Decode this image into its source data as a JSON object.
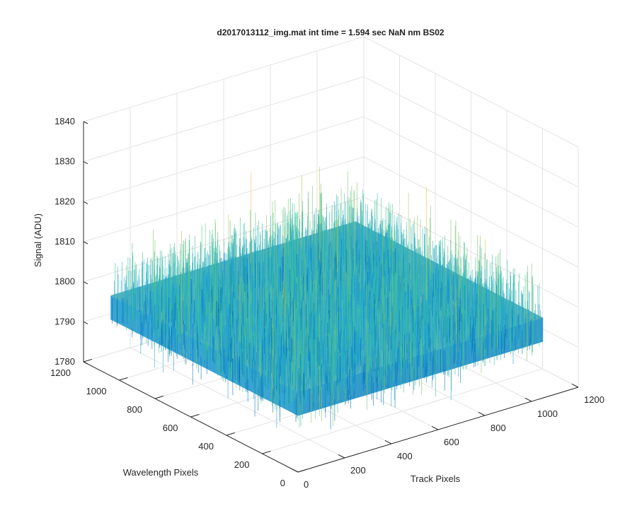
{
  "chart_data": {
    "type": "surface",
    "title": "d2017013112_img.mat int time = 1.594 sec  NaN nm BS02",
    "xlabel": "Track Pixels",
    "ylabel": "Wavelength Pixels",
    "zlabel": "Signal (ADU)",
    "xlim": [
      0,
      1200
    ],
    "ylim": [
      0,
      1200
    ],
    "zlim": [
      1780,
      1840
    ],
    "x_ticks": [
      "0",
      "200",
      "400",
      "600",
      "800",
      "1000",
      "1200"
    ],
    "y_ticks": [
      "0",
      "200",
      "400",
      "600",
      "800",
      "1000",
      "1200"
    ],
    "z_ticks": [
      "1780",
      "1790",
      "1800",
      "1810",
      "1820",
      "1830",
      "1840"
    ],
    "data_extent": {
      "x": [
        1,
        1050
      ],
      "y": [
        1,
        1050
      ]
    },
    "signal_mean": 1800,
    "signal_spread": [
      1784,
      1825
    ],
    "grid": true,
    "colormap": [
      "#0072bd",
      "#1f9ad6",
      "#2ab0c6",
      "#3fbf9c",
      "#7cc46c",
      "#b9c24e",
      "#e6c43c"
    ]
  }
}
